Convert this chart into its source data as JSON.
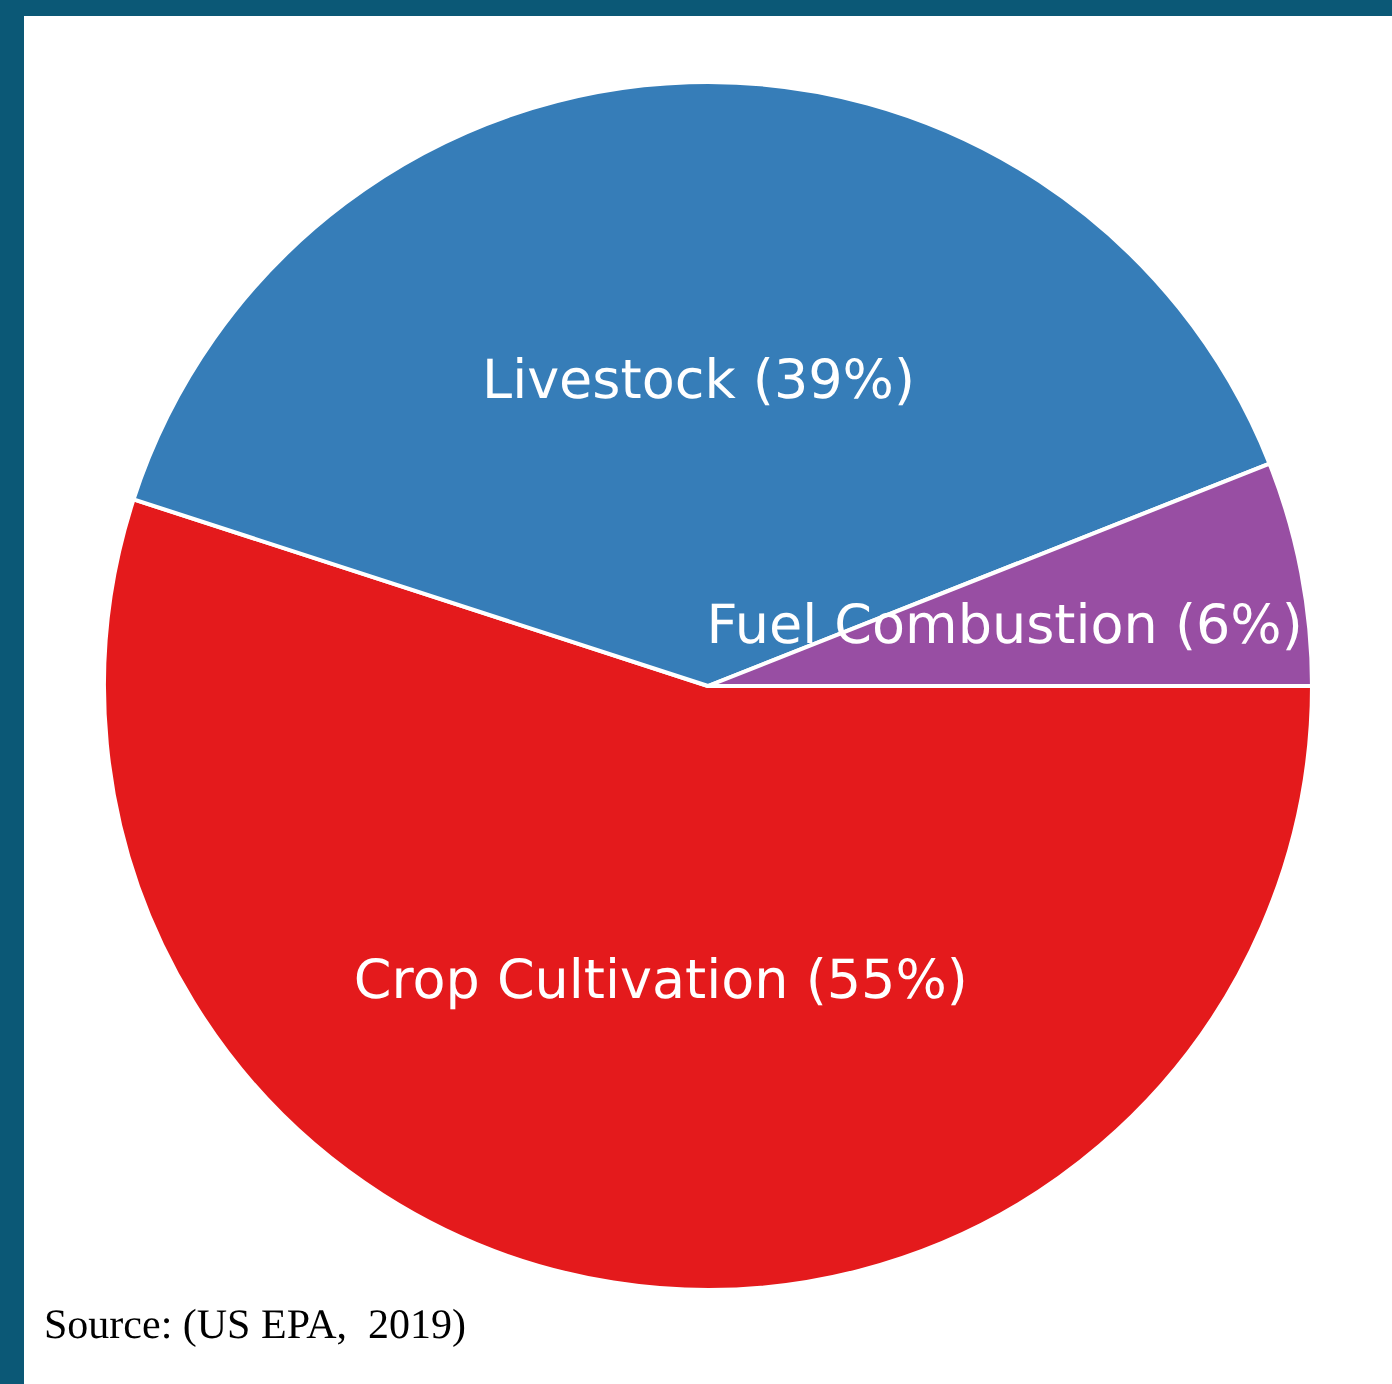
{
  "chart_data": {
    "type": "pie",
    "categories": [
      "Crop Cultivation (55%)",
      "Livestock (39%)",
      "Fuel Combustion (6%)"
    ],
    "values": [
      55,
      39,
      6
    ],
    "colors": [
      "#e41a1c",
      "#367db8",
      "#984ea3"
    ],
    "legend": false,
    "annotations": [
      "Source: (US EPA,  2019)"
    ]
  }
}
